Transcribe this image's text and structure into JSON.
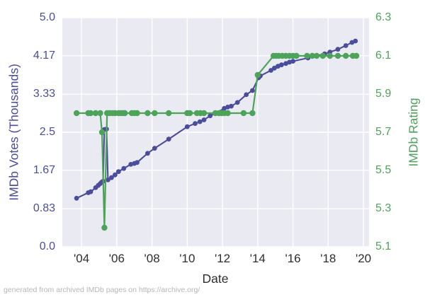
{
  "figure": {
    "caption": "generated from archived IMDb pages on https://archive.org/"
  },
  "chart_data": {
    "type": "line",
    "title": "",
    "xlabel": "Date",
    "grid": true,
    "plot_bg": "#eaeaf2",
    "grid_color": "#ffffff",
    "x_range": [
      2002.91,
      2020.32
    ],
    "x_ticks": [
      {
        "label": "'04",
        "value": 2004
      },
      {
        "label": "'06",
        "value": 2006
      },
      {
        "label": "'08",
        "value": 2008
      },
      {
        "label": "'10",
        "value": 2010
      },
      {
        "label": "'12",
        "value": 2012
      },
      {
        "label": "'14",
        "value": 2014
      },
      {
        "label": "'16",
        "value": 2016
      },
      {
        "label": "'18",
        "value": 2018
      },
      {
        "label": "'20",
        "value": 2020
      }
    ],
    "left_axis": {
      "label": "IMDb Votes (Thousands)",
      "color": "#4c4c9d",
      "range": [
        0,
        5.0
      ],
      "ticks": [
        {
          "label": "5.0",
          "value": 5.0
        },
        {
          "label": "4.17",
          "value": 4.17
        },
        {
          "label": "3.33",
          "value": 3.33
        },
        {
          "label": "2.5",
          "value": 2.5
        },
        {
          "label": "1.67",
          "value": 1.67
        },
        {
          "label": "0.83",
          "value": 0.83
        },
        {
          "label": "0.0",
          "value": 0.0
        }
      ]
    },
    "right_axis": {
      "label": "IMDb Rating",
      "color": "#4da35a",
      "range": [
        5.1,
        6.3
      ],
      "ticks": [
        {
          "label": "6.3",
          "value": 6.3
        },
        {
          "label": "6.1",
          "value": 6.1
        },
        {
          "label": "5.9",
          "value": 5.9
        },
        {
          "label": "5.7",
          "value": 5.7
        },
        {
          "label": "5.5",
          "value": 5.5
        },
        {
          "label": "5.3",
          "value": 5.3
        },
        {
          "label": "5.1",
          "value": 5.1
        }
      ]
    },
    "series": [
      {
        "name": "IMDb Votes (Thousands)",
        "axis": "left",
        "color": "#4c4c9d",
        "points": [
          [
            2003.72,
            1.06
          ],
          [
            2004.38,
            1.18
          ],
          [
            2004.52,
            1.2
          ],
          [
            2004.8,
            1.29
          ],
          [
            2004.95,
            1.34
          ],
          [
            2005.06,
            1.38
          ],
          [
            2005.14,
            1.41
          ],
          [
            2005.22,
            1.43
          ],
          [
            2005.3,
            2.56
          ],
          [
            2005.42,
            2.57
          ],
          [
            2005.5,
            1.46
          ],
          [
            2005.7,
            1.51
          ],
          [
            2005.9,
            1.57
          ],
          [
            2006.1,
            1.64
          ],
          [
            2006.4,
            1.71
          ],
          [
            2006.8,
            1.8
          ],
          [
            2007.0,
            1.82
          ],
          [
            2007.15,
            1.84
          ],
          [
            2007.75,
            2.04
          ],
          [
            2008.15,
            2.15
          ],
          [
            2008.95,
            2.35
          ],
          [
            2010.0,
            2.62
          ],
          [
            2010.45,
            2.69
          ],
          [
            2010.72,
            2.73
          ],
          [
            2010.95,
            2.77
          ],
          [
            2011.3,
            2.86
          ],
          [
            2011.6,
            2.91
          ],
          [
            2012.1,
            3.02
          ],
          [
            2012.3,
            3.05
          ],
          [
            2012.5,
            3.07
          ],
          [
            2012.85,
            3.15
          ],
          [
            2013.35,
            3.32
          ],
          [
            2013.7,
            3.41
          ],
          [
            2014.05,
            3.69
          ],
          [
            2014.15,
            3.73
          ],
          [
            2014.75,
            3.85
          ],
          [
            2014.95,
            3.9
          ],
          [
            2015.15,
            3.94
          ],
          [
            2015.35,
            3.97
          ],
          [
            2015.6,
            4.0
          ],
          [
            2015.8,
            4.03
          ],
          [
            2016.0,
            4.05
          ],
          [
            2016.85,
            4.12
          ],
          [
            2017.35,
            4.17
          ],
          [
            2017.8,
            4.21
          ],
          [
            2018.1,
            4.25
          ],
          [
            2018.55,
            4.31
          ],
          [
            2019.0,
            4.39
          ],
          [
            2019.35,
            4.46
          ],
          [
            2019.55,
            4.49
          ]
        ]
      },
      {
        "name": "IMDb Rating",
        "axis": "right",
        "color": "#4da35a",
        "points": [
          [
            2003.72,
            5.8
          ],
          [
            2004.38,
            5.8
          ],
          [
            2004.52,
            5.8
          ],
          [
            2004.8,
            5.8
          ],
          [
            2005.06,
            5.8
          ],
          [
            2005.16,
            5.7
          ],
          [
            2005.3,
            5.2
          ],
          [
            2005.45,
            5.8
          ],
          [
            2005.6,
            5.8
          ],
          [
            2005.76,
            5.8
          ],
          [
            2005.9,
            5.8
          ],
          [
            2006.1,
            5.8
          ],
          [
            2006.24,
            5.8
          ],
          [
            2006.36,
            5.8
          ],
          [
            2006.46,
            5.8
          ],
          [
            2006.85,
            5.8
          ],
          [
            2007.0,
            5.8
          ],
          [
            2007.15,
            5.8
          ],
          [
            2007.75,
            5.8
          ],
          [
            2008.15,
            5.8
          ],
          [
            2008.95,
            5.8
          ],
          [
            2010.0,
            5.8
          ],
          [
            2010.15,
            5.8
          ],
          [
            2010.55,
            5.8
          ],
          [
            2010.75,
            5.8
          ],
          [
            2010.95,
            5.8
          ],
          [
            2011.6,
            5.8
          ],
          [
            2011.8,
            5.8
          ],
          [
            2011.95,
            5.8
          ],
          [
            2012.1,
            5.8
          ],
          [
            2012.3,
            5.8
          ],
          [
            2013.2,
            5.8
          ],
          [
            2013.7,
            5.8
          ],
          [
            2014.0,
            6.0
          ],
          [
            2014.9,
            6.1
          ],
          [
            2015.05,
            6.1
          ],
          [
            2015.2,
            6.1
          ],
          [
            2015.4,
            6.1
          ],
          [
            2015.6,
            6.1
          ],
          [
            2015.8,
            6.1
          ],
          [
            2016.0,
            6.1
          ],
          [
            2016.2,
            6.1
          ],
          [
            2016.8,
            6.1
          ],
          [
            2017.1,
            6.1
          ],
          [
            2017.35,
            6.1
          ],
          [
            2017.7,
            6.1
          ],
          [
            2018.1,
            6.1
          ],
          [
            2018.55,
            6.1
          ],
          [
            2019.0,
            6.1
          ],
          [
            2019.4,
            6.1
          ],
          [
            2019.6,
            6.1
          ]
        ]
      }
    ]
  }
}
